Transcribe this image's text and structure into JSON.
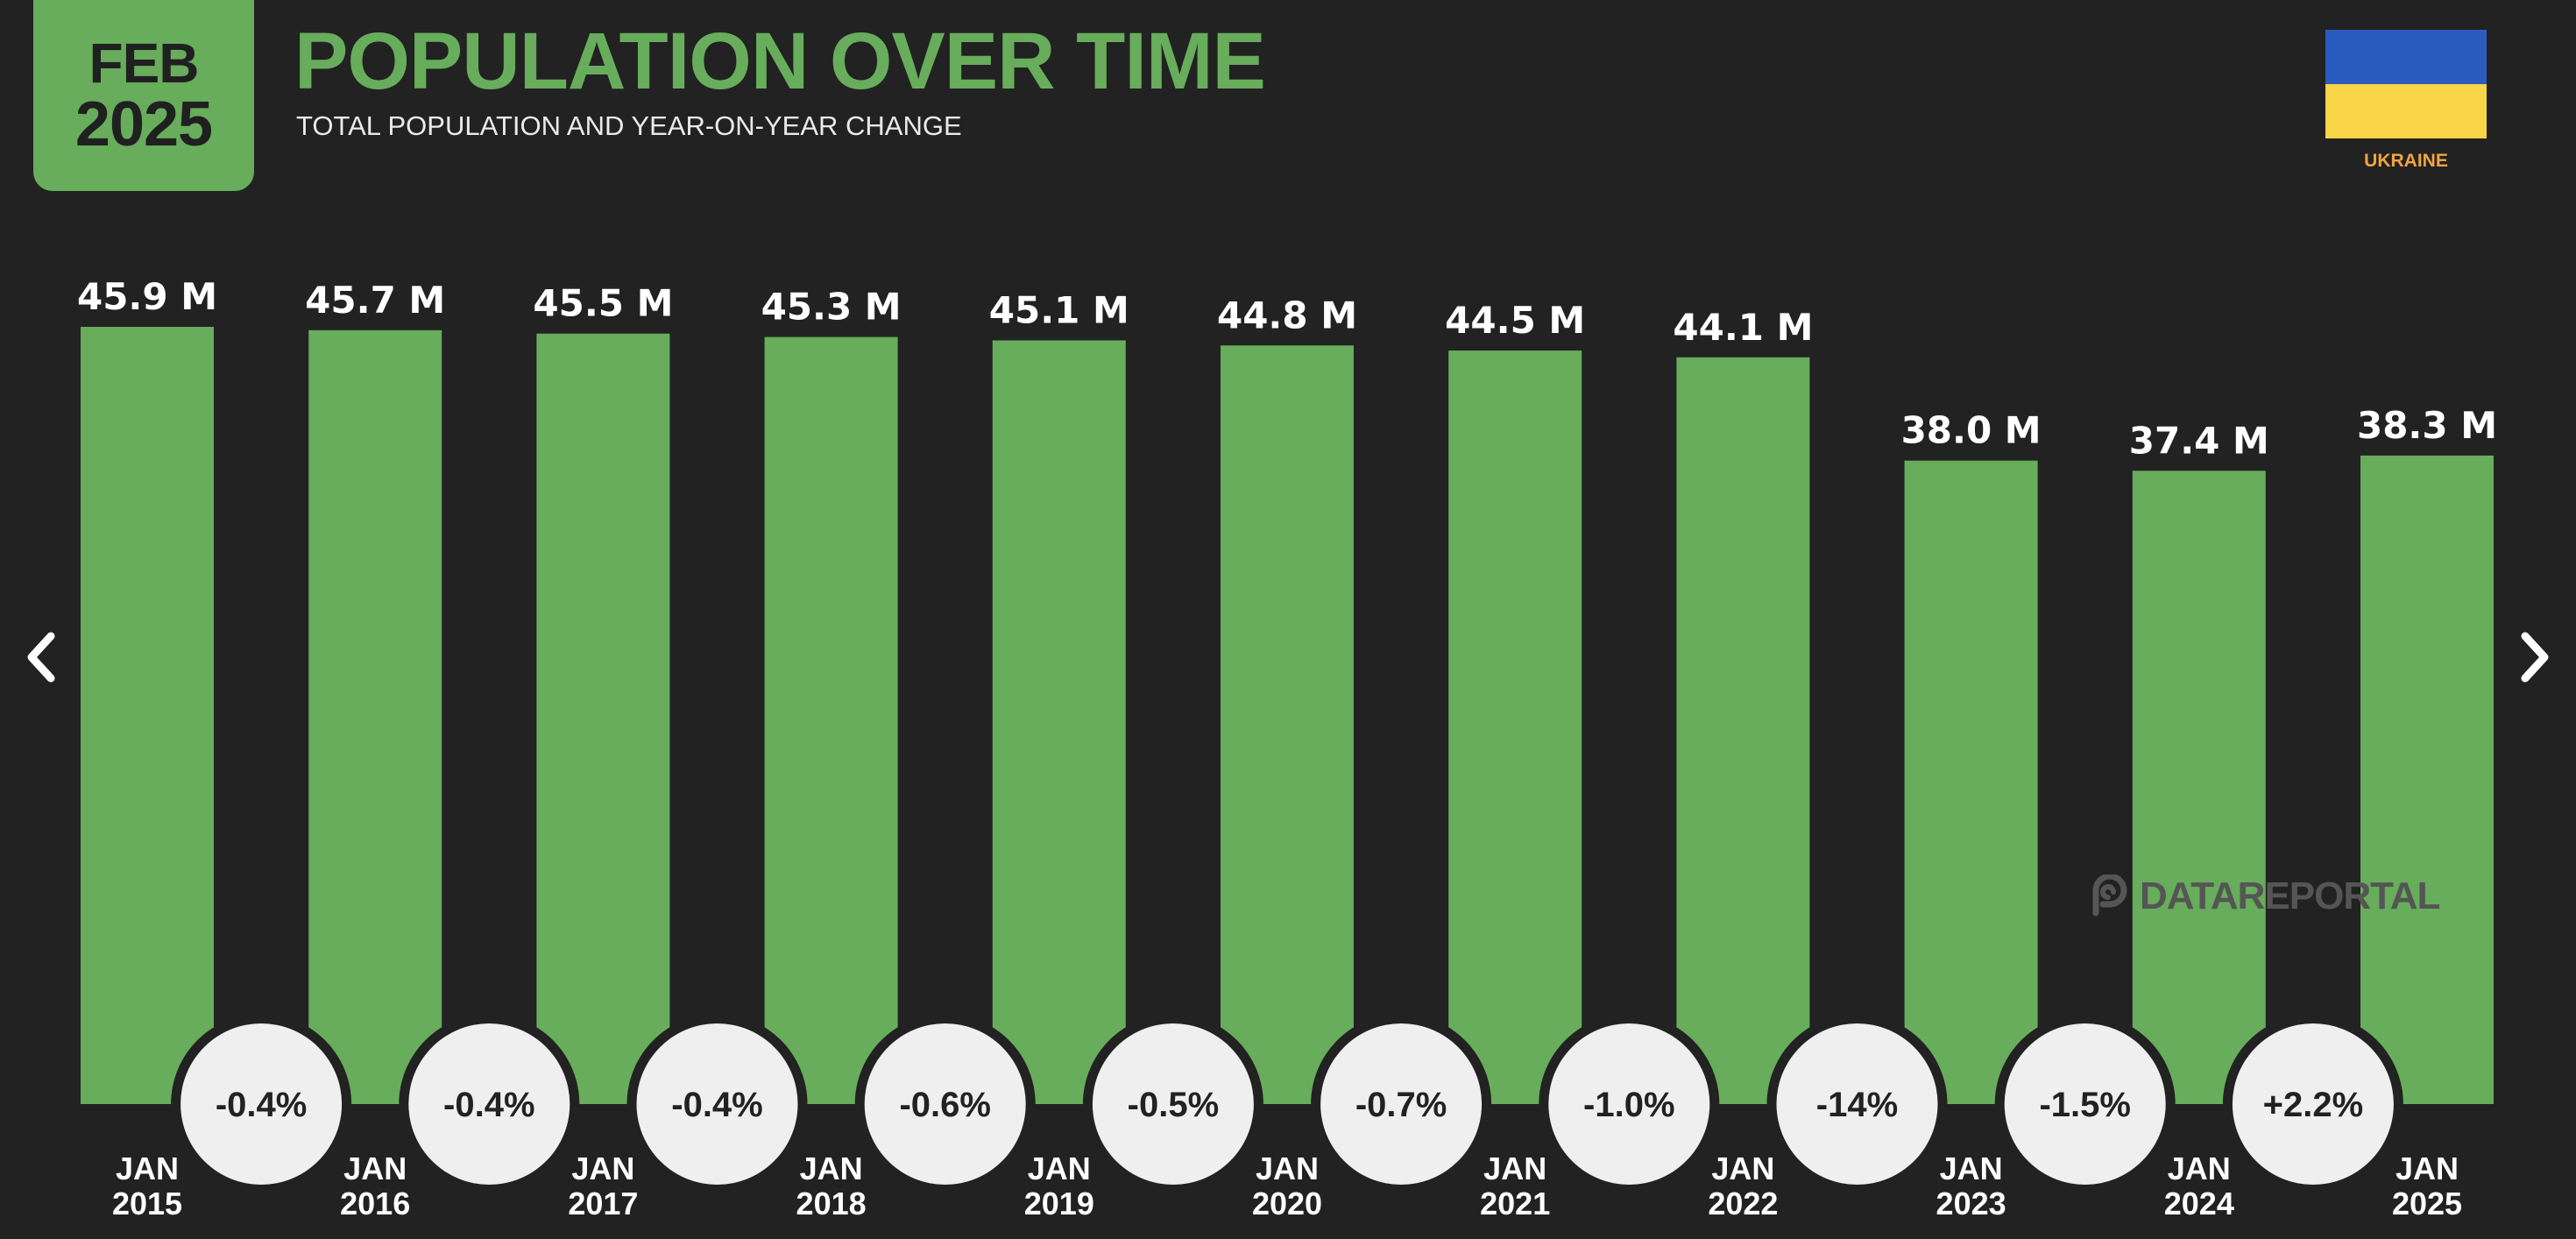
{
  "header": {
    "date_month": "FEB",
    "date_year": "2025",
    "title": "POPULATION OVER TIME",
    "subtitle": "TOTAL POPULATION AND YEAR-ON-YEAR CHANGE",
    "country": "UKRAINE"
  },
  "flag": {
    "top_color": "#2a5cbe",
    "bottom_color": "#f8d447"
  },
  "watermark": "DATAREPORTAL",
  "navigation": {
    "prev_icon": "chevron-left-icon",
    "next_icon": "chevron-right-icon"
  },
  "colors": {
    "background": "#222222",
    "bar": "#67ad5b",
    "bubble": "#efefef",
    "text": "#ffffff",
    "accent_country": "#f2a343"
  },
  "chart_data": {
    "type": "bar",
    "title": "POPULATION OVER TIME",
    "subtitle": "TOTAL POPULATION AND YEAR-ON-YEAR CHANGE",
    "unit": "M",
    "categories": [
      [
        "JAN",
        "2015"
      ],
      [
        "JAN",
        "2016"
      ],
      [
        "JAN",
        "2017"
      ],
      [
        "JAN",
        "2018"
      ],
      [
        "JAN",
        "2019"
      ],
      [
        "JAN",
        "2020"
      ],
      [
        "JAN",
        "2021"
      ],
      [
        "JAN",
        "2022"
      ],
      [
        "JAN",
        "2023"
      ],
      [
        "JAN",
        "2024"
      ],
      [
        "JAN",
        "2025"
      ]
    ],
    "values": [
      45.9,
      45.7,
      45.5,
      45.3,
      45.1,
      44.8,
      44.5,
      44.1,
      38.0,
      37.4,
      38.3
    ],
    "value_labels": [
      "45.9 M",
      "45.7 M",
      "45.5 M",
      "45.3 M",
      "45.1 M",
      "44.8 M",
      "44.5 M",
      "44.1 M",
      "38.0 M",
      "37.4 M",
      "38.3 M"
    ],
    "changes": [
      "-0.4%",
      "-0.4%",
      "-0.4%",
      "-0.6%",
      "-0.5%",
      "-0.7%",
      "-1.0%",
      "-14%",
      "-1.5%",
      "+2.2%"
    ]
  }
}
